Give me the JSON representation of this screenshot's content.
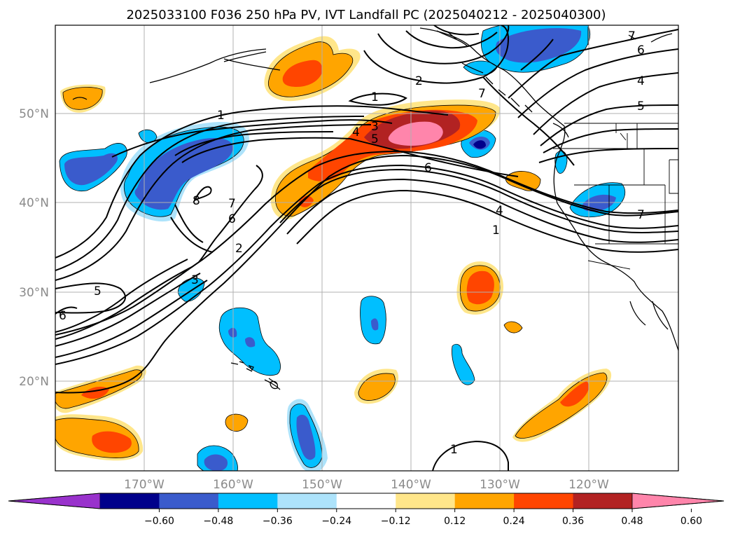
{
  "title": "2025033100 F036 250 hPa PV, IVT Landfall PC (2025040212 - 2025040300)",
  "axes": {
    "lon_ticks": [
      "170°W",
      "160°W",
      "150°W",
      "140°W",
      "130°W",
      "120°W"
    ],
    "lat_ticks": [
      "50°N",
      "40°N",
      "30°N",
      "20°N"
    ]
  },
  "colorbar": {
    "colors": [
      "#9932CC",
      "#00008B",
      "#3A5BCC",
      "#00BFFF",
      "#ADE3FB",
      "#FFFFFF",
      "#FFE68A",
      "#FFA500",
      "#FF4500",
      "#B22222",
      "#FF85AB"
    ],
    "tick_labels": [
      "−0.60",
      "−0.48",
      "−0.36",
      "−0.24",
      "−0.12",
      "0.12",
      "0.24",
      "0.36",
      "0.48",
      "0.60"
    ]
  },
  "contour_labels": [
    "7",
    "6",
    "4",
    "5",
    "2",
    "1",
    "1",
    "3",
    "4",
    "5",
    "6",
    "4",
    "1",
    "7",
    "8",
    "7",
    "6",
    "2",
    "3",
    "5",
    "6",
    "7",
    "1"
  ]
}
